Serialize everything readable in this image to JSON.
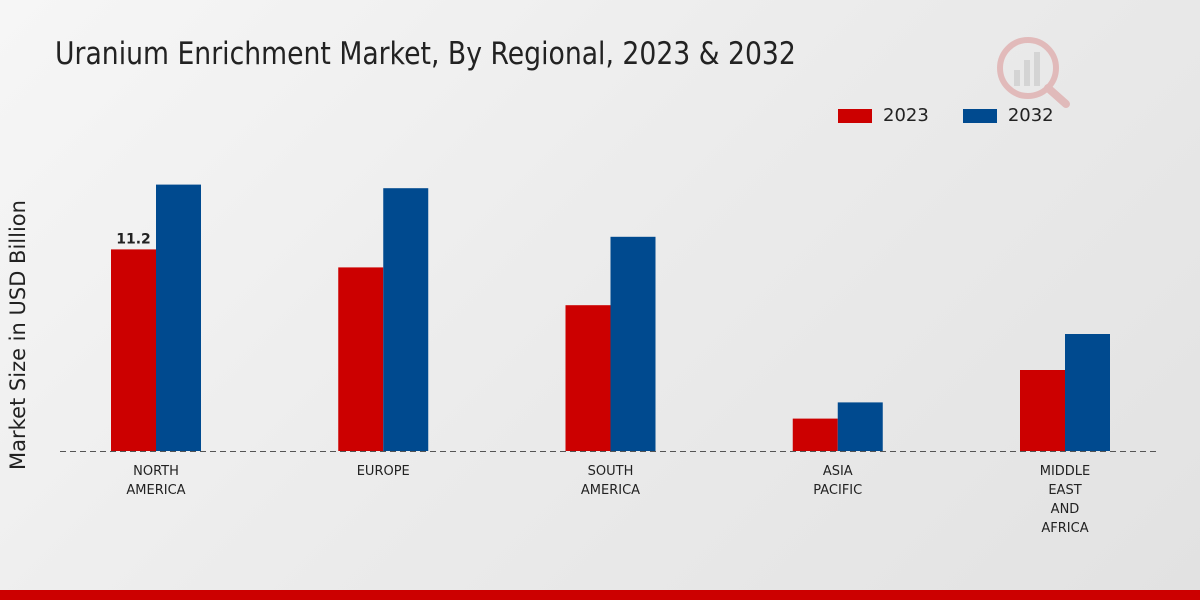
{
  "chart_data": {
    "type": "bar",
    "title": "Uranium Enrichment Market, By Regional, 2023 & 2032",
    "xlabel": "",
    "ylabel": "Market Size in USD Billion",
    "categories": [
      [
        "NORTH",
        "AMERICA"
      ],
      [
        "EUROPE"
      ],
      [
        "SOUTH",
        "AMERICA"
      ],
      [
        "ASIA",
        "PACIFIC"
      ],
      [
        "MIDDLE",
        "EAST",
        "AND",
        "AFRICA"
      ]
    ],
    "series": [
      {
        "name": "2023",
        "color": "#cc0000",
        "values": [
          11.2,
          10.2,
          8.1,
          1.8,
          4.5
        ]
      },
      {
        "name": "2032",
        "color": "#004a8f",
        "values": [
          14.8,
          14.6,
          11.9,
          2.7,
          6.5
        ]
      }
    ],
    "data_labels": [
      {
        "series": 0,
        "index": 0,
        "text": "11.2"
      }
    ],
    "ylim": [
      0,
      20
    ],
    "grid": false,
    "legend": "top-right"
  }
}
